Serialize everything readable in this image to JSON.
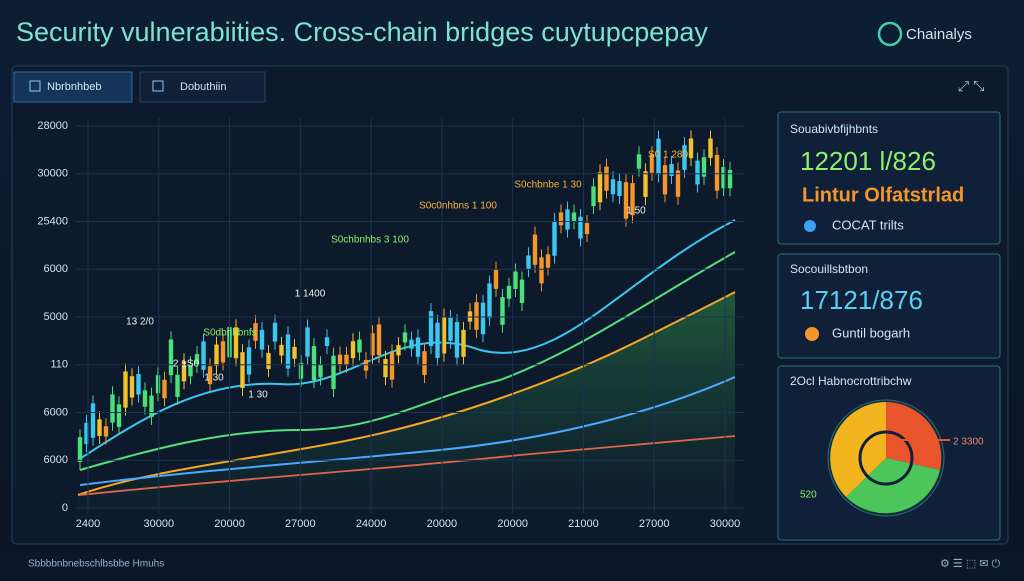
{
  "header": {
    "title": "Security vulnerabiities. Cross-chain bridges cuytupcpepay",
    "brand": "Chainalys"
  },
  "tabs": [
    "Nbrbnhbeb",
    "Dobuthiin"
  ],
  "chart": {
    "y_labels": [
      "28000",
      "30000",
      "25400",
      "6000",
      "5000",
      "110",
      "6000",
      "6000",
      "0"
    ],
    "x_labels": [
      "2400",
      "30000",
      "20000",
      "27000",
      "24000",
      "20000",
      "20000",
      "21000",
      "27000",
      "30000"
    ],
    "annotations": [
      "13 2/0",
      "2 1S0",
      "1 30",
      "1 30",
      "S0dbnhbnfs",
      "1 1400",
      "S0chbnhbs 3 100",
      "S0c0nhbns 1 100",
      "S0chbnbe 1 30",
      "1 50",
      "S0 1 280"
    ]
  },
  "panels": [
    {
      "title": "Souabivbfijhbnts",
      "value": "12201 l/826",
      "subtitle": "Lintur Olfatstrlad",
      "note": "COCAT trilts"
    },
    {
      "title": "Socouillsbtbon",
      "value": "17121/876",
      "note": "Guntil bogarh"
    },
    {
      "title": "2Ocl Habnocrottribchw",
      "labels": [
        "2 3300",
        "520"
      ]
    }
  ],
  "footer": "Sbbbbnbnebschlbsbbe Hmuhs"
}
